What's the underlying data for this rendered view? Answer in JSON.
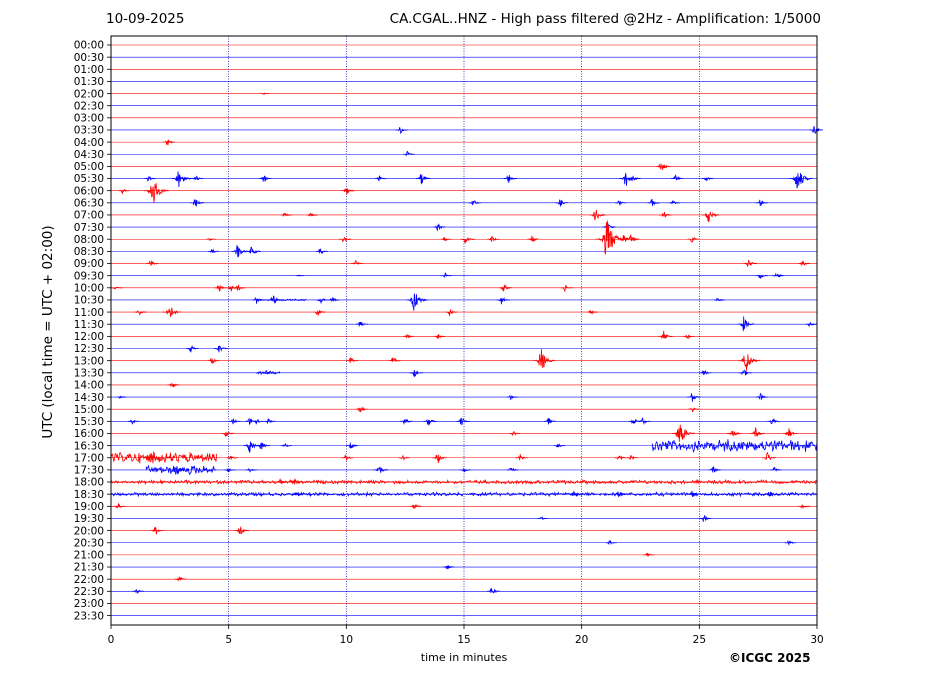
{
  "header": {
    "date": "10-09-2025",
    "title": "CA.CGAL..HNZ - High pass filtered @2Hz - Amplification: 1/5000"
  },
  "footer": {
    "copyright": "©ICGC 2025"
  },
  "chart_data": {
    "type": "line",
    "title": "CA.CGAL..HNZ - High pass filtered @2Hz - Amplification: 1/5000",
    "xlabel": "time in minutes",
    "ylabel": "UTC (local time = UTC + 02:00)",
    "xlim": [
      0,
      30
    ],
    "x_ticks": [
      "0",
      "5",
      "10",
      "15",
      "20",
      "25",
      "30"
    ],
    "y_ticks": [
      "00:00",
      "00:30",
      "01:00",
      "01:30",
      "02:00",
      "02:30",
      "03:00",
      "03:30",
      "04:00",
      "04:30",
      "05:00",
      "05:30",
      "06:00",
      "06:30",
      "07:00",
      "07:30",
      "08:00",
      "08:30",
      "09:00",
      "09:30",
      "10:00",
      "10:30",
      "11:00",
      "11:30",
      "12:00",
      "12:30",
      "13:00",
      "13:30",
      "14:00",
      "14:30",
      "15:00",
      "15:30",
      "16:00",
      "16:30",
      "17:00",
      "17:30",
      "18:00",
      "18:30",
      "19:00",
      "19:30",
      "20:00",
      "20:30",
      "21:00",
      "21:30",
      "22:00",
      "22:30",
      "23:00",
      "23:30"
    ],
    "trace_colors": [
      "#ff0000",
      "#0000ff"
    ],
    "grid_vertical": true,
    "events": [
      {
        "trace": "02:00",
        "minute": 6.5,
        "amp": 1
      },
      {
        "trace": "03:30",
        "minute": 12.3,
        "amp": 4
      },
      {
        "trace": "03:30",
        "minute": 29.9,
        "amp": 5
      },
      {
        "trace": "04:00",
        "minute": 2.4,
        "amp": 4
      },
      {
        "trace": "04:30",
        "minute": 12.6,
        "amp": 3
      },
      {
        "trace": "05:00",
        "minute": 23.4,
        "amp": 6
      },
      {
        "trace": "05:30",
        "minute": 1.6,
        "amp": 3
      },
      {
        "trace": "05:30",
        "minute": 2.9,
        "amp": 10
      },
      {
        "trace": "05:30",
        "minute": 3.6,
        "amp": 4
      },
      {
        "trace": "05:30",
        "minute": 6.5,
        "amp": 4
      },
      {
        "trace": "05:30",
        "minute": 11.4,
        "amp": 3
      },
      {
        "trace": "05:30",
        "minute": 13.2,
        "amp": 6
      },
      {
        "trace": "05:30",
        "minute": 16.9,
        "amp": 5
      },
      {
        "trace": "05:30",
        "minute": 21.9,
        "amp": 9
      },
      {
        "trace": "05:30",
        "minute": 22.2,
        "amp": 4
      },
      {
        "trace": "05:30",
        "minute": 24.0,
        "amp": 4
      },
      {
        "trace": "05:30",
        "minute": 25.3,
        "amp": 3
      },
      {
        "trace": "05:30",
        "minute": 29.2,
        "amp": 13
      },
      {
        "trace": "06:00",
        "minute": 0.5,
        "amp": 3
      },
      {
        "trace": "06:00",
        "minute": 1.8,
        "amp": 15
      },
      {
        "trace": "06:00",
        "minute": 10.0,
        "amp": 5
      },
      {
        "trace": "06:30",
        "minute": 3.6,
        "amp": 5
      },
      {
        "trace": "06:30",
        "minute": 15.4,
        "amp": 4
      },
      {
        "trace": "06:30",
        "minute": 19.1,
        "amp": 4
      },
      {
        "trace": "06:30",
        "minute": 21.6,
        "amp": 3
      },
      {
        "trace": "06:30",
        "minute": 23.0,
        "amp": 4
      },
      {
        "trace": "06:30",
        "minute": 23.9,
        "amp": 3
      },
      {
        "trace": "06:30",
        "minute": 27.6,
        "amp": 4
      },
      {
        "trace": "07:00",
        "minute": 7.4,
        "amp": 3
      },
      {
        "trace": "07:00",
        "minute": 8.5,
        "amp": 3
      },
      {
        "trace": "07:00",
        "minute": 20.6,
        "amp": 7
      },
      {
        "trace": "07:00",
        "minute": 23.5,
        "amp": 4
      },
      {
        "trace": "07:00",
        "minute": 25.4,
        "amp": 8
      },
      {
        "trace": "07:30",
        "minute": 13.9,
        "amp": 4
      },
      {
        "trace": "07:30",
        "minute": 21.1,
        "amp": 5
      },
      {
        "trace": "08:00",
        "minute": 4.2,
        "amp": 2
      },
      {
        "trace": "08:00",
        "minute": 9.9,
        "amp": 4
      },
      {
        "trace": "08:00",
        "minute": 14.2,
        "amp": 3
      },
      {
        "trace": "08:00",
        "minute": 15.1,
        "amp": 6
      },
      {
        "trace": "08:00",
        "minute": 16.2,
        "amp": 4
      },
      {
        "trace": "08:00",
        "minute": 17.9,
        "amp": 4
      },
      {
        "trace": "08:00",
        "minute": 21.1,
        "amp": 20
      },
      {
        "trace": "08:00",
        "minute": 21.8,
        "amp": 5
      },
      {
        "trace": "08:00",
        "minute": 22.1,
        "amp": 6
      },
      {
        "trace": "08:00",
        "minute": 24.7,
        "amp": 4
      },
      {
        "trace": "08:30",
        "minute": 4.3,
        "amp": 3
      },
      {
        "trace": "08:30",
        "minute": 5.4,
        "amp": 8
      },
      {
        "trace": "08:30",
        "minute": 6.0,
        "amp": 6
      },
      {
        "trace": "08:30",
        "minute": 8.9,
        "amp": 4
      },
      {
        "trace": "09:00",
        "minute": 1.7,
        "amp": 4
      },
      {
        "trace": "09:00",
        "minute": 10.4,
        "amp": 4
      },
      {
        "trace": "09:00",
        "minute": 27.1,
        "amp": 5
      },
      {
        "trace": "09:00",
        "minute": 29.4,
        "amp": 4
      },
      {
        "trace": "09:30",
        "minute": 8.0,
        "amp": 1
      },
      {
        "trace": "09:30",
        "minute": 14.2,
        "amp": 3
      },
      {
        "trace": "09:30",
        "minute": 27.6,
        "amp": 4
      },
      {
        "trace": "09:30",
        "minute": 28.3,
        "amp": 4
      },
      {
        "trace": "10:00",
        "minute": 0.2,
        "amp": 3
      },
      {
        "trace": "10:00",
        "minute": 4.6,
        "amp": 4
      },
      {
        "trace": "10:00",
        "minute": 5.1,
        "amp": 4
      },
      {
        "trace": "10:00",
        "minute": 5.4,
        "amp": 4
      },
      {
        "trace": "10:00",
        "minute": 16.7,
        "amp": 5
      },
      {
        "trace": "10:00",
        "minute": 19.3,
        "amp": 4
      },
      {
        "trace": "10:30",
        "minute": 6.2,
        "amp": 4
      },
      {
        "trace": "10:30",
        "minute": 6.9,
        "amp": 6
      },
      {
        "trace": "10:30",
        "minute": 8.9,
        "amp": 4
      },
      {
        "trace": "10:30",
        "minute": 9.4,
        "amp": 4
      },
      {
        "trace": "10:30",
        "minute": 12.9,
        "amp": 12
      },
      {
        "trace": "10:30",
        "minute": 16.6,
        "amp": 5
      },
      {
        "trace": "10:30",
        "minute": 25.8,
        "amp": 3
      },
      {
        "trace": "11:00",
        "minute": 1.2,
        "amp": 4
      },
      {
        "trace": "11:00",
        "minute": 2.5,
        "amp": 9
      },
      {
        "trace": "11:00",
        "minute": 8.8,
        "amp": 4
      },
      {
        "trace": "11:00",
        "minute": 14.4,
        "amp": 4
      },
      {
        "trace": "11:00",
        "minute": 20.4,
        "amp": 3
      },
      {
        "trace": "11:30",
        "minute": 10.6,
        "amp": 4
      },
      {
        "trace": "11:30",
        "minute": 26.9,
        "amp": 8
      },
      {
        "trace": "11:30",
        "minute": 29.7,
        "amp": 3
      },
      {
        "trace": "12:00",
        "minute": 12.6,
        "amp": 3
      },
      {
        "trace": "12:00",
        "minute": 13.9,
        "amp": 3
      },
      {
        "trace": "12:00",
        "minute": 23.5,
        "amp": 6
      },
      {
        "trace": "12:00",
        "minute": 24.5,
        "amp": 3
      },
      {
        "trace": "12:30",
        "minute": 3.4,
        "amp": 4
      },
      {
        "trace": "12:30",
        "minute": 4.6,
        "amp": 5
      },
      {
        "trace": "13:00",
        "minute": 4.3,
        "amp": 4
      },
      {
        "trace": "13:00",
        "minute": 10.2,
        "amp": 4
      },
      {
        "trace": "13:00",
        "minute": 12.0,
        "amp": 4
      },
      {
        "trace": "13:00",
        "minute": 18.3,
        "amp": 12
      },
      {
        "trace": "13:00",
        "minute": 27.0,
        "amp": 12
      },
      {
        "trace": "13:30",
        "minute": 6.6,
        "amp": 3
      },
      {
        "trace": "13:30",
        "minute": 12.9,
        "amp": 5
      },
      {
        "trace": "13:30",
        "minute": 25.2,
        "amp": 4
      },
      {
        "trace": "13:30",
        "minute": 26.9,
        "amp": 5
      },
      {
        "trace": "14:00",
        "minute": 2.6,
        "amp": 4
      },
      {
        "trace": "14:30",
        "minute": 0.4,
        "amp": 2
      },
      {
        "trace": "14:30",
        "minute": 17.0,
        "amp": 3
      },
      {
        "trace": "14:30",
        "minute": 24.7,
        "amp": 5
      },
      {
        "trace": "14:30",
        "minute": 27.6,
        "amp": 4
      },
      {
        "trace": "15:00",
        "minute": 10.6,
        "amp": 4
      },
      {
        "trace": "15:00",
        "minute": 24.7,
        "amp": 3
      },
      {
        "trace": "15:30",
        "minute": 0.9,
        "amp": 3
      },
      {
        "trace": "15:30",
        "minute": 5.2,
        "amp": 3
      },
      {
        "trace": "15:30",
        "minute": 5.9,
        "amp": 4
      },
      {
        "trace": "15:30",
        "minute": 6.2,
        "amp": 3
      },
      {
        "trace": "15:30",
        "minute": 6.7,
        "amp": 3
      },
      {
        "trace": "15:30",
        "minute": 12.5,
        "amp": 4
      },
      {
        "trace": "15:30",
        "minute": 13.5,
        "amp": 5
      },
      {
        "trace": "15:30",
        "minute": 14.9,
        "amp": 5
      },
      {
        "trace": "15:30",
        "minute": 18.6,
        "amp": 4
      },
      {
        "trace": "15:30",
        "minute": 22.2,
        "amp": 4
      },
      {
        "trace": "15:30",
        "minute": 22.6,
        "amp": 4
      },
      {
        "trace": "15:30",
        "minute": 28.1,
        "amp": 4
      },
      {
        "trace": "16:00",
        "minute": 4.9,
        "amp": 4
      },
      {
        "trace": "16:00",
        "minute": 17.1,
        "amp": 3
      },
      {
        "trace": "16:00",
        "minute": 24.2,
        "amp": 13
      },
      {
        "trace": "16:00",
        "minute": 26.4,
        "amp": 6
      },
      {
        "trace": "16:00",
        "minute": 27.4,
        "amp": 6
      },
      {
        "trace": "16:00",
        "minute": 28.8,
        "amp": 6
      },
      {
        "trace": "16:30",
        "minute": 5.9,
        "amp": 8
      },
      {
        "trace": "16:30",
        "minute": 6.4,
        "amp": 5
      },
      {
        "trace": "16:30",
        "minute": 7.4,
        "amp": 3
      },
      {
        "trace": "16:30",
        "minute": 10.2,
        "amp": 4
      },
      {
        "trace": "16:30",
        "minute": 19.0,
        "amp": 3
      },
      {
        "trace": "17:00",
        "minute": 1.7,
        "amp": 6
      },
      {
        "trace": "17:00",
        "minute": 5.1,
        "amp": 3
      },
      {
        "trace": "17:00",
        "minute": 10.0,
        "amp": 4
      },
      {
        "trace": "17:00",
        "minute": 12.4,
        "amp": 3
      },
      {
        "trace": "17:00",
        "minute": 13.9,
        "amp": 6
      },
      {
        "trace": "17:00",
        "minute": 17.4,
        "amp": 4
      },
      {
        "trace": "17:00",
        "minute": 21.6,
        "amp": 4
      },
      {
        "trace": "17:00",
        "minute": 22.1,
        "amp": 3
      },
      {
        "trace": "17:00",
        "minute": 27.9,
        "amp": 6
      },
      {
        "trace": "17:30",
        "minute": 2.8,
        "amp": 6
      },
      {
        "trace": "17:30",
        "minute": 5.0,
        "amp": 3
      },
      {
        "trace": "17:30",
        "minute": 5.9,
        "amp": 3
      },
      {
        "trace": "17:30",
        "minute": 11.4,
        "amp": 6
      },
      {
        "trace": "17:30",
        "minute": 15.0,
        "amp": 3
      },
      {
        "trace": "17:30",
        "minute": 17.0,
        "amp": 4
      },
      {
        "trace": "17:30",
        "minute": 25.6,
        "amp": 4
      },
      {
        "trace": "17:30",
        "minute": 28.2,
        "amp": 3
      },
      {
        "trace": "18:00",
        "minute": 7.2,
        "amp": 3
      },
      {
        "trace": "18:00",
        "minute": 7.8,
        "amp": 5
      },
      {
        "trace": "18:30",
        "minute": 7.9,
        "amp": 4
      },
      {
        "trace": "18:30",
        "minute": 19.7,
        "amp": 5
      },
      {
        "trace": "18:30",
        "minute": 21.6,
        "amp": 5
      },
      {
        "trace": "18:30",
        "minute": 24.7,
        "amp": 4
      },
      {
        "trace": "18:30",
        "minute": 28.0,
        "amp": 4
      },
      {
        "trace": "19:00",
        "minute": 0.3,
        "amp": 4
      },
      {
        "trace": "19:00",
        "minute": 12.9,
        "amp": 4
      },
      {
        "trace": "19:00",
        "minute": 29.4,
        "amp": 4
      },
      {
        "trace": "19:30",
        "minute": 18.3,
        "amp": 2
      },
      {
        "trace": "19:30",
        "minute": 25.2,
        "amp": 4
      },
      {
        "trace": "20:00",
        "minute": 1.9,
        "amp": 5
      },
      {
        "trace": "20:00",
        "minute": 5.5,
        "amp": 6
      },
      {
        "trace": "20:30",
        "minute": 21.2,
        "amp": 3
      },
      {
        "trace": "20:30",
        "minute": 28.8,
        "amp": 3
      },
      {
        "trace": "21:00",
        "minute": 22.8,
        "amp": 3
      },
      {
        "trace": "21:30",
        "minute": 14.3,
        "amp": 3
      },
      {
        "trace": "22:00",
        "minute": 2.9,
        "amp": 4
      },
      {
        "trace": "22:30",
        "minute": 1.1,
        "amp": 3
      },
      {
        "trace": "22:30",
        "minute": 16.2,
        "amp": 5
      }
    ],
    "noise_bands": [
      {
        "trace": "16:30",
        "start": 23.0,
        "end": 30.0,
        "amp": 7
      },
      {
        "trace": "17:00",
        "start": 0.0,
        "end": 4.5,
        "amp": 6
      },
      {
        "trace": "17:30",
        "start": 1.5,
        "end": 4.5,
        "amp": 5
      },
      {
        "trace": "18:00",
        "start": 0.0,
        "end": 30.0,
        "amp": 2
      },
      {
        "trace": "18:30",
        "start": 0.0,
        "end": 30.0,
        "amp": 2
      },
      {
        "trace": "13:30",
        "start": 6.2,
        "end": 7.2,
        "amp": 2
      },
      {
        "trace": "10:30",
        "start": 6.3,
        "end": 8.3,
        "amp": 1
      }
    ]
  }
}
